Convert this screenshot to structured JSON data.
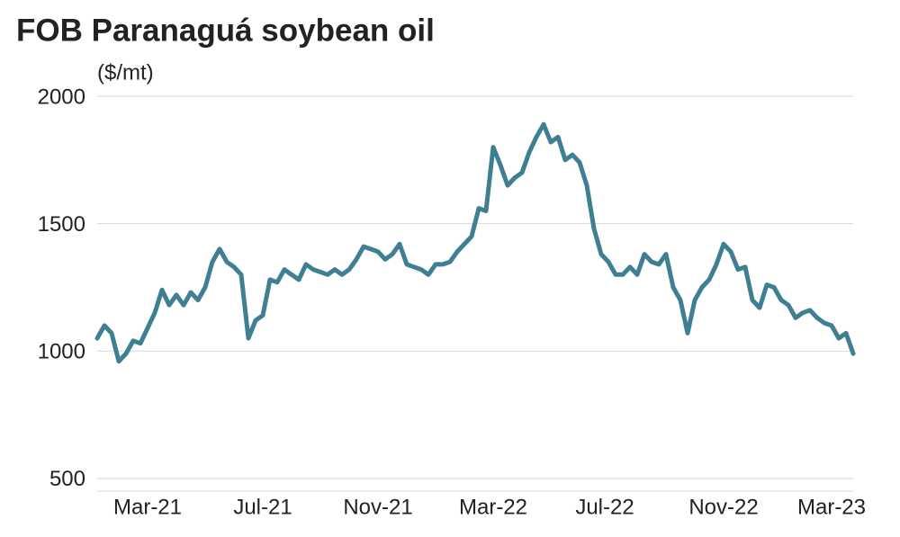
{
  "chart_data": {
    "type": "line",
    "title": "FOB Paranaguá soybean oil",
    "y_label": "($/mt)",
    "values": [
      1050,
      1100,
      1070,
      960,
      990,
      1040,
      1030,
      1090,
      1150,
      1240,
      1180,
      1220,
      1180,
      1230,
      1200,
      1250,
      1350,
      1400,
      1350,
      1330,
      1300,
      1050,
      1120,
      1140,
      1280,
      1270,
      1320,
      1300,
      1280,
      1340,
      1320,
      1310,
      1300,
      1320,
      1300,
      1320,
      1360,
      1410,
      1400,
      1390,
      1360,
      1380,
      1420,
      1340,
      1330,
      1320,
      1300,
      1340,
      1340,
      1350,
      1390,
      1420,
      1450,
      1560,
      1550,
      1800,
      1730,
      1650,
      1680,
      1700,
      1780,
      1840,
      1890,
      1820,
      1840,
      1750,
      1770,
      1740,
      1650,
      1480,
      1380,
      1350,
      1300,
      1300,
      1330,
      1300,
      1380,
      1350,
      1340,
      1380,
      1250,
      1200,
      1070,
      1200,
      1250,
      1280,
      1340,
      1420,
      1390,
      1320,
      1330,
      1200,
      1170,
      1260,
      1250,
      1200,
      1180,
      1130,
      1150,
      1160,
      1130,
      1110,
      1100,
      1050,
      1070,
      990
    ],
    "color": "#3f7f93",
    "xlim": [
      0,
      105
    ],
    "xticks": [
      {
        "value": 7,
        "label": "Mar-21"
      },
      {
        "value": 23,
        "label": "Jul-21"
      },
      {
        "value": 39,
        "label": "Nov-21"
      },
      {
        "value": 55,
        "label": "Mar-22"
      },
      {
        "value": 70.5,
        "label": "Jul-22"
      },
      {
        "value": 87,
        "label": "Nov-22"
      },
      {
        "value": 102,
        "label": "Mar-23"
      }
    ],
    "ylim": [
      450,
      2000
    ],
    "yticks": [
      500,
      1000,
      1500,
      2000
    ],
    "grid": true
  }
}
